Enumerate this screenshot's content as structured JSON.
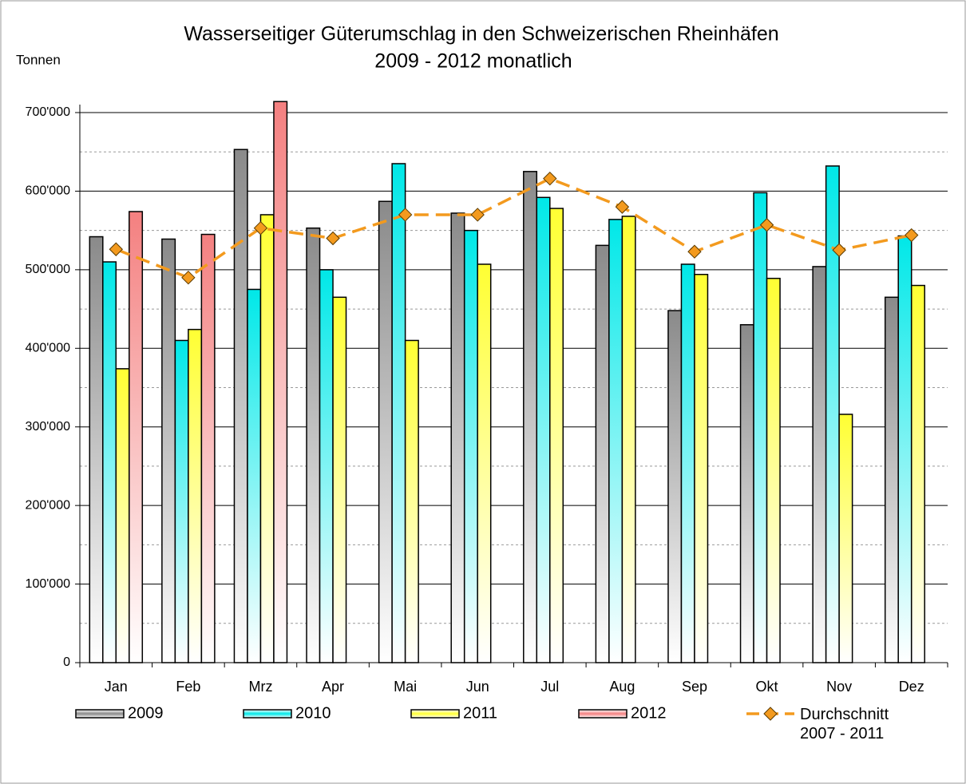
{
  "chart_data": {
    "type": "bar",
    "title": "Wasserseitiger Güterumschlag in den Schweizerischen Rheinhäfen",
    "subtitle": "2009 - 2012 monatlich",
    "y_label": "Tonnen",
    "categories": [
      "Jan",
      "Feb",
      "Mrz",
      "Apr",
      "Mai",
      "Jun",
      "Jul",
      "Aug",
      "Sep",
      "Okt",
      "Nov",
      "Dez"
    ],
    "series": [
      {
        "name": "2009",
        "color": "#8a8a8a",
        "values": [
          542000,
          539000,
          653000,
          553000,
          587000,
          572000,
          625000,
          531000,
          448000,
          430000,
          504000,
          465000
        ]
      },
      {
        "name": "2010",
        "color": "#00e8e8",
        "values": [
          510000,
          410000,
          475000,
          500000,
          635000,
          550000,
          592000,
          564000,
          507000,
          598000,
          632000,
          543000
        ]
      },
      {
        "name": "2011",
        "color": "#ffff33",
        "values": [
          374000,
          424000,
          570000,
          465000,
          410000,
          507000,
          578000,
          568000,
          494000,
          489000,
          316000,
          480000
        ]
      },
      {
        "name": "2012",
        "color": "#f48080",
        "values": [
          574000,
          545000,
          714000,
          null,
          null,
          null,
          null,
          null,
          null,
          null,
          null,
          null
        ]
      },
      {
        "name": "Durchschnitt 2007 - 2011",
        "type": "line",
        "color": "#f39a1e",
        "values": [
          526000,
          490000,
          553000,
          540000,
          570000,
          570000,
          616000,
          580000,
          523000,
          557000,
          525000,
          544000
        ]
      }
    ],
    "ylim": [
      0,
      700000
    ],
    "yticks": [
      0,
      {
        "value": 100000,
        "label": "100'000"
      },
      {
        "value": 200000,
        "label": "200'000"
      },
      {
        "value": 300000,
        "label": "300'000"
      },
      {
        "value": 400000,
        "label": "400'000"
      },
      {
        "value": 500000,
        "label": "500'000"
      },
      {
        "value": 600000,
        "label": "600'000"
      },
      {
        "value": 700000,
        "label": "700'000"
      }
    ],
    "minor_yticks": [
      50000,
      150000,
      250000,
      350000,
      450000,
      550000,
      650000
    ],
    "grid": true,
    "legend": "bottom"
  }
}
